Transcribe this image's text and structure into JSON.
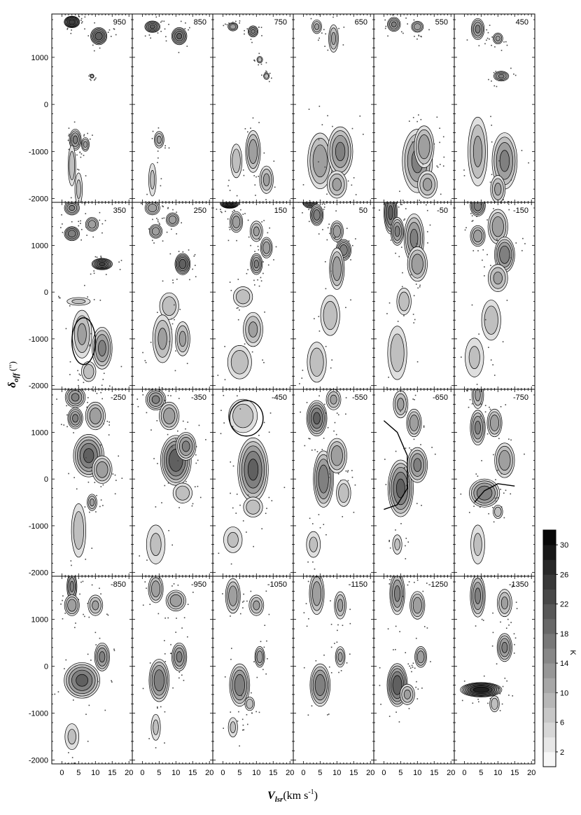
{
  "chart_data": {
    "type": "heatmap",
    "description_kind": "channel-map grid of position-velocity panels",
    "grid": {
      "rows": 4,
      "cols": 6
    },
    "panels": [
      {
        "label": "950",
        "blobs": [
          [
            3,
            1750,
            1.5,
            80,
            24
          ],
          [
            11,
            1450,
            1.6,
            120,
            20
          ],
          [
            9,
            600,
            0.4,
            30,
            8
          ],
          [
            4,
            -750,
            1.2,
            150,
            14
          ],
          [
            7,
            -850,
            0.8,
            100,
            10
          ],
          [
            3,
            -1300,
            0.8,
            300,
            8
          ],
          [
            5,
            -1800,
            0.8,
            250,
            6
          ]
        ]
      },
      {
        "label": "850",
        "blobs": [
          [
            3,
            1650,
            1.5,
            80,
            18
          ],
          [
            11,
            1450,
            1.5,
            120,
            18
          ],
          [
            5,
            -750,
            1.0,
            120,
            10
          ],
          [
            3,
            -1600,
            0.8,
            250,
            6
          ]
        ]
      },
      {
        "label": "750",
        "blobs": [
          [
            3,
            1650,
            1.0,
            60,
            12
          ],
          [
            9,
            1550,
            1.0,
            80,
            14
          ],
          [
            11,
            950,
            0.6,
            50,
            8
          ],
          [
            13,
            600,
            0.6,
            50,
            8
          ],
          [
            4,
            -1200,
            1.2,
            250,
            8
          ],
          [
            9,
            -1000,
            1.5,
            300,
            12
          ],
          [
            13,
            -1600,
            1.4,
            200,
            10
          ]
        ]
      },
      {
        "label": "650",
        "blobs": [
          [
            4,
            1650,
            1.0,
            100,
            10
          ],
          [
            9,
            1400,
            1.0,
            200,
            10
          ],
          [
            5,
            -1200,
            2.5,
            400,
            12
          ],
          [
            11,
            -1000,
            2.5,
            350,
            14
          ],
          [
            10,
            -1700,
            2.0,
            200,
            10
          ]
        ]
      },
      {
        "label": "550",
        "blobs": [
          [
            3,
            1700,
            1.3,
            100,
            14
          ],
          [
            10,
            1650,
            1.2,
            80,
            12
          ],
          [
            10,
            -1200,
            3.0,
            450,
            14
          ],
          [
            12,
            -900,
            2.0,
            300,
            12
          ],
          [
            13,
            -1700,
            2.0,
            200,
            10
          ]
        ]
      },
      {
        "label": "450",
        "blobs": [
          [
            4,
            1600,
            1.3,
            150,
            14
          ],
          [
            10,
            1400,
            1.0,
            80,
            10
          ],
          [
            11,
            600,
            1.5,
            70,
            14
          ],
          [
            4,
            -1000,
            2.0,
            500,
            10
          ],
          [
            12,
            -1200,
            2.5,
            400,
            14
          ],
          [
            10,
            -1800,
            1.5,
            200,
            10
          ]
        ]
      },
      {
        "label": "350",
        "blobs": [
          [
            3,
            1800,
            1.5,
            100,
            14
          ],
          [
            3,
            1250,
            1.5,
            100,
            16
          ],
          [
            9,
            1450,
            1.3,
            100,
            12
          ],
          [
            12,
            600,
            2.0,
            80,
            22
          ],
          [
            5,
            -200,
            2.5,
            60,
            6
          ],
          [
            6,
            -900,
            2.0,
            350,
            10
          ],
          [
            12,
            -1200,
            2.0,
            300,
            14
          ],
          [
            8,
            -1700,
            1.5,
            150,
            8
          ]
        ]
      },
      {
        "label": "250",
        "blobs": [
          [
            3,
            1800,
            1.5,
            100,
            12
          ],
          [
            4,
            1300,
            1.3,
            100,
            12
          ],
          [
            9,
            1550,
            1.3,
            100,
            12
          ],
          [
            12,
            600,
            1.5,
            150,
            20
          ],
          [
            8,
            -300,
            2.0,
            200,
            8
          ],
          [
            6,
            -1000,
            2.0,
            350,
            10
          ],
          [
            12,
            -1000,
            1.5,
            250,
            10
          ]
        ]
      },
      {
        "label": "150",
        "blobs": [
          [
            2,
            1900,
            1.8,
            70,
            28
          ],
          [
            4,
            1500,
            1.3,
            150,
            12
          ],
          [
            10,
            1300,
            1.3,
            150,
            10
          ],
          [
            13,
            950,
            1.2,
            150,
            12
          ],
          [
            10,
            600,
            1.2,
            150,
            14
          ],
          [
            6,
            -100,
            2.0,
            150,
            8
          ],
          [
            9,
            -800,
            2.0,
            250,
            10
          ],
          [
            5,
            -1500,
            2.5,
            250,
            8
          ]
        ]
      },
      {
        "label": "50",
        "blobs": [
          [
            2,
            1950,
            1.5,
            100,
            22
          ],
          [
            4,
            1650,
            1.3,
            150,
            16
          ],
          [
            10,
            1300,
            1.3,
            150,
            12
          ],
          [
            12,
            900,
            1.5,
            150,
            16
          ],
          [
            10,
            500,
            1.5,
            300,
            12
          ],
          [
            8,
            -500,
            2.0,
            300,
            8
          ],
          [
            4,
            -1500,
            2.0,
            300,
            8
          ]
        ]
      },
      {
        "label": "-50",
        "blobs": [
          [
            2,
            1700,
            1.3,
            300,
            18
          ],
          [
            4,
            1300,
            1.3,
            200,
            14
          ],
          [
            9,
            1150,
            2.0,
            350,
            14
          ],
          [
            10,
            600,
            2.0,
            250,
            12
          ],
          [
            6,
            -200,
            1.5,
            200,
            8
          ],
          [
            4,
            -1300,
            2.0,
            400,
            8
          ]
        ]
      },
      {
        "label": "-150",
        "blobs": [
          [
            4,
            1850,
            1.5,
            150,
            16
          ],
          [
            4,
            1200,
            1.5,
            150,
            12
          ],
          [
            10,
            1400,
            2.0,
            250,
            12
          ],
          [
            12,
            800,
            2.0,
            250,
            16
          ],
          [
            10,
            300,
            2.0,
            200,
            10
          ],
          [
            8,
            -600,
            2.0,
            300,
            8
          ],
          [
            3,
            -1400,
            2.0,
            300,
            6
          ]
        ]
      },
      {
        "label": "-250",
        "blobs": [
          [
            4,
            1750,
            2.0,
            150,
            14
          ],
          [
            4,
            1300,
            1.5,
            150,
            14
          ],
          [
            10,
            1350,
            2.0,
            200,
            12
          ],
          [
            8,
            500,
            3.0,
            300,
            18
          ],
          [
            12,
            200,
            2.0,
            200,
            12
          ],
          [
            9,
            -500,
            1.0,
            120,
            10
          ],
          [
            5,
            -1100,
            1.5,
            400,
            8
          ]
        ]
      },
      {
        "label": "-350",
        "blobs": [
          [
            4,
            1700,
            2.0,
            150,
            14
          ],
          [
            8,
            1350,
            2.0,
            200,
            12
          ],
          [
            10,
            400,
            3.0,
            350,
            20
          ],
          [
            13,
            700,
            2.0,
            200,
            14
          ],
          [
            12,
            -300,
            2.0,
            150,
            8
          ],
          [
            4,
            -1400,
            2.0,
            300,
            6
          ]
        ]
      },
      {
        "label": "-450",
        "blobs": [
          [
            6,
            1350,
            3.0,
            250,
            8
          ],
          [
            9,
            200,
            3.0,
            450,
            18
          ],
          [
            9,
            -600,
            2.0,
            150,
            8
          ],
          [
            3,
            -1300,
            2.0,
            200,
            6
          ]
        ]
      },
      {
        "label": "-550",
        "blobs": [
          [
            4,
            1300,
            2.0,
            250,
            18
          ],
          [
            9,
            1700,
            1.5,
            150,
            10
          ],
          [
            6,
            0,
            2.0,
            400,
            16
          ],
          [
            10,
            500,
            2.0,
            250,
            12
          ],
          [
            12,
            -300,
            1.5,
            200,
            8
          ],
          [
            3,
            -1400,
            1.5,
            200,
            6
          ]
        ]
      },
      {
        "label": "-650",
        "blobs": [
          [
            5,
            1600,
            1.5,
            200,
            10
          ],
          [
            9,
            1200,
            1.5,
            200,
            12
          ],
          [
            5,
            -200,
            2.5,
            400,
            18
          ],
          [
            10,
            300,
            2.0,
            250,
            14
          ],
          [
            4,
            -1400,
            1.0,
            150,
            6
          ]
        ]
      },
      {
        "label": "-750",
        "blobs": [
          [
            4,
            1800,
            1.2,
            200,
            10
          ],
          [
            4,
            1100,
            1.5,
            250,
            14
          ],
          [
            9,
            1200,
            1.5,
            200,
            12
          ],
          [
            12,
            400,
            2.0,
            250,
            12
          ],
          [
            6,
            -300,
            3.0,
            200,
            16
          ],
          [
            10,
            -700,
            1.0,
            100,
            8
          ],
          [
            4,
            -1400,
            1.5,
            300,
            6
          ]
        ]
      },
      {
        "label": "-850",
        "blobs": [
          [
            3,
            1700,
            1.0,
            200,
            14
          ],
          [
            3,
            1300,
            1.5,
            150,
            12
          ],
          [
            10,
            1300,
            1.5,
            150,
            10
          ],
          [
            6,
            -300,
            3.5,
            250,
            18
          ],
          [
            12,
            200,
            1.5,
            200,
            14
          ],
          [
            3,
            -1500,
            1.5,
            200,
            6
          ]
        ]
      },
      {
        "label": "-950",
        "blobs": [
          [
            4,
            1650,
            1.5,
            200,
            12
          ],
          [
            10,
            1400,
            2.0,
            150,
            12
          ],
          [
            5,
            -300,
            2.0,
            300,
            16
          ],
          [
            11,
            200,
            1.5,
            200,
            14
          ],
          [
            4,
            -1300,
            1.0,
            200,
            6
          ]
        ]
      },
      {
        "label": "-1050",
        "blobs": [
          [
            3,
            1500,
            1.5,
            250,
            12
          ],
          [
            10,
            1300,
            1.5,
            150,
            10
          ],
          [
            5,
            -400,
            2.0,
            300,
            16
          ],
          [
            11,
            200,
            1.0,
            150,
            12
          ],
          [
            8,
            -800,
            1.0,
            100,
            8
          ],
          [
            3,
            -1300,
            1.0,
            150,
            6
          ]
        ]
      },
      {
        "label": "-1150",
        "blobs": [
          [
            4,
            1550,
            1.5,
            300,
            12
          ],
          [
            11,
            1300,
            1.2,
            200,
            10
          ],
          [
            5,
            -400,
            2.0,
            300,
            16
          ],
          [
            11,
            200,
            1.0,
            150,
            10
          ]
        ]
      },
      {
        "label": "-1250",
        "blobs": [
          [
            4,
            1550,
            1.5,
            300,
            14
          ],
          [
            10,
            1300,
            1.5,
            200,
            12
          ],
          [
            4,
            -400,
            2.0,
            300,
            20
          ],
          [
            11,
            200,
            1.2,
            150,
            12
          ],
          [
            7,
            -600,
            1.5,
            150,
            10
          ]
        ]
      },
      {
        "label": "-1350",
        "blobs": [
          [
            4,
            1500,
            1.5,
            300,
            14
          ],
          [
            12,
            1350,
            1.5,
            200,
            10
          ],
          [
            5,
            -500,
            4.0,
            100,
            28
          ],
          [
            12,
            400,
            1.5,
            200,
            14
          ],
          [
            9,
            -800,
            1.0,
            120,
            8
          ]
        ]
      }
    ],
    "x_ticks": [
      0,
      5,
      10,
      15,
      20
    ],
    "y_ticks": [
      1000,
      0,
      -1000,
      -2000
    ],
    "y_ticks_top_row": [
      1000,
      0,
      -1000,
      -2000
    ],
    "xlim": [
      -3,
      21
    ],
    "ylim": [
      -2100,
      1950
    ],
    "xlabel_main": "V",
    "xlabel_sub": "lsr",
    "xlabel_units": "(km s",
    "xlabel_sup": "-1",
    "xlabel_close": ")",
    "ylabel_main": "δ",
    "ylabel_sub": "off",
    "ylabel_units": "(\")",
    "colorbar": {
      "ticks": [
        2,
        6,
        10,
        14,
        18,
        22,
        26,
        30
      ],
      "range": [
        0,
        32
      ],
      "unit": "K",
      "colors": [
        "#ffffff",
        "#000000"
      ]
    },
    "ellipses": [
      {
        "panel": "350",
        "cx": 6.5,
        "cy": -1050,
        "rx": 3.5,
        "ry": 500
      },
      {
        "panel": "-450",
        "cx": 7,
        "cy": 1300,
        "rx": 5,
        "ry": 380
      }
    ],
    "arcs": [
      {
        "panel": "-650",
        "points": [
          [
            0,
            1250
          ],
          [
            4,
            1000
          ],
          [
            7,
            500
          ],
          [
            7,
            -200
          ],
          [
            4,
            -550
          ],
          [
            0,
            -650
          ]
        ]
      },
      {
        "panel": "-750",
        "points": [
          [
            3,
            -500
          ],
          [
            6,
            -250
          ],
          [
            10,
            -100
          ],
          [
            15,
            -150
          ]
        ]
      }
    ]
  }
}
